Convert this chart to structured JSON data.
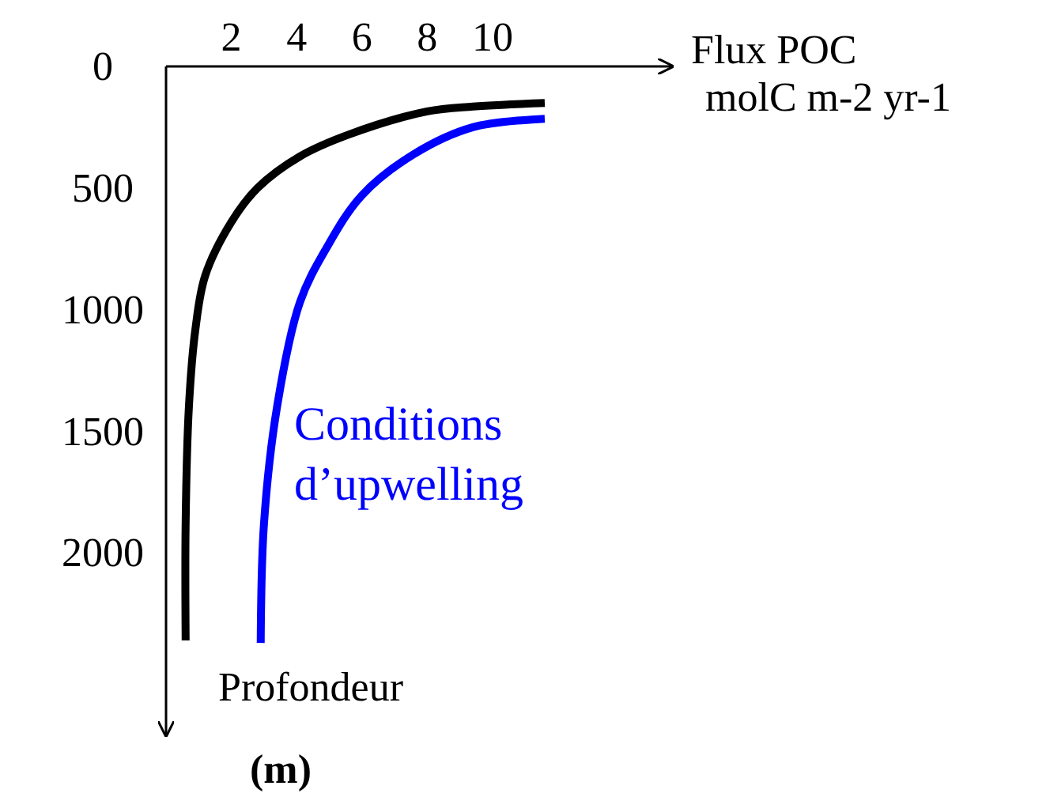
{
  "chart_data": {
    "type": "line",
    "xlabel": "Flux POC\nmolC m-2 yr-1",
    "ylabel": "Profondeur\n(m)",
    "xlim": [
      0,
      15.5
    ],
    "ylim": [
      2750,
      0
    ],
    "xticks": [
      2,
      4,
      6,
      8,
      10
    ],
    "yticks": [
      0,
      500,
      1000,
      1500,
      2000
    ],
    "marker": "none",
    "line_style": "solid",
    "series": [
      {
        "color": "#000000",
        "x": [
          11.6,
          9.4,
          8.0,
          5.6,
          4.1,
          2.8,
          2.0,
          1.2,
          0.9,
          0.7,
          0.6,
          0.6
        ],
        "values": [
          150,
          165,
          185,
          280,
          370,
          500,
          640,
          860,
          1080,
          1400,
          1880,
          2360
        ]
      },
      {
        "name": "Conditions\nd’upwelling",
        "color": "#0000ff",
        "x": [
          11.6,
          9.4,
          7.6,
          6.0,
          4.9,
          4.1,
          3.4,
          3.0,
          2.9
        ],
        "values": [
          215,
          250,
          360,
          530,
          750,
          970,
          1400,
          1880,
          2370
        ]
      }
    ]
  }
}
